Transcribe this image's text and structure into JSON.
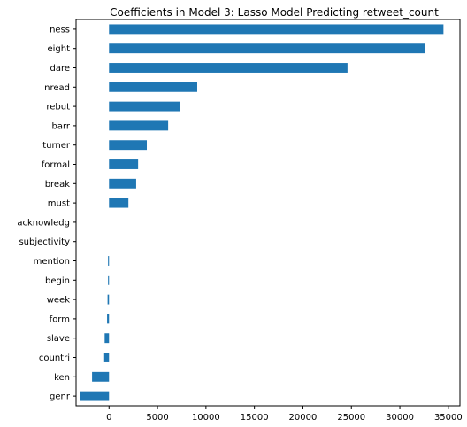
{
  "chart_data": {
    "type": "bar",
    "orientation": "horizontal",
    "title": "Coefficients in Model 3: Lasso Model Predicting retweet_count",
    "xlabel": "",
    "ylabel": "",
    "categories": [
      "ness",
      "eight",
      "dare",
      "nread",
      "rebut",
      "barr",
      "turner",
      "formal",
      "break",
      "must",
      "acknowledg",
      "subjectivity",
      "mention",
      "begin",
      "week",
      "form",
      "slave",
      "countri",
      "ken",
      "genr"
    ],
    "values": [
      34500,
      32600,
      24600,
      9100,
      7300,
      6100,
      3900,
      3000,
      2800,
      2000,
      0,
      0,
      -100,
      -100,
      -150,
      -200,
      -450,
      -500,
      -1750,
      -3000
    ],
    "xlim": [
      -3400,
      36200
    ],
    "xticks": [
      0,
      5000,
      10000,
      15000,
      20000,
      25000,
      30000,
      35000
    ],
    "grid": false,
    "legend": "none",
    "bar_color": "#1f77b4"
  }
}
